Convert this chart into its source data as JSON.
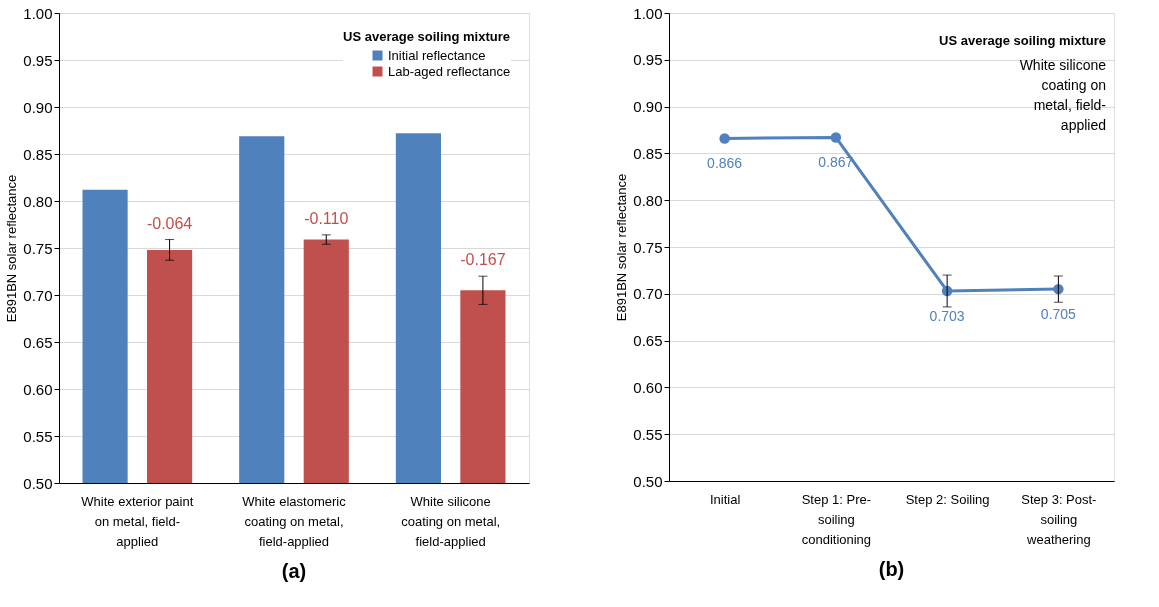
{
  "chart_data": [
    {
      "type": "bar",
      "title": "(a)",
      "ylabel": "E891BN solar reflectance",
      "legend_title": "US average soiling mixture",
      "categories": [
        "White exterior paint on metal, field-applied",
        "White elastomeric coating on metal, field-applied",
        "White silicone coating on metal, field-applied"
      ],
      "series": [
        {
          "name": "Initial reflectance",
          "color": "#4f81bd",
          "values": [
            0.812,
            0.869,
            0.872
          ]
        },
        {
          "name": "Lab-aged reflectance",
          "color": "#c0504d",
          "values": [
            0.748,
            0.759,
            0.705
          ],
          "errors": [
            0.011,
            0.005,
            0.015
          ]
        }
      ],
      "annotations": [
        "-0.064",
        "-0.110",
        "-0.167"
      ],
      "ylim": [
        0.5,
        1.0
      ],
      "yticks": [
        {
          "value": 0.5,
          "label": "0.50"
        },
        0.55,
        {
          "value": 0.6,
          "label": "0.60"
        },
        0.65,
        {
          "value": 0.7,
          "label": "0.70"
        },
        0.75,
        {
          "value": 0.8,
          "label": "0.80"
        },
        0.85,
        {
          "value": 0.9,
          "label": "0.90"
        },
        0.95,
        {
          "value": 1.0,
          "label": "1.00"
        }
      ],
      "grid": "y",
      "legend": "top right"
    },
    {
      "type": "line",
      "title": "(b)",
      "ylabel": "E891BN solar reflectance",
      "legend_title": "US average soiling mixture",
      "categories": [
        "Initial",
        "Step 1: Pre-soiling conditioning",
        "Step 2: Soiling",
        "Step 3: Post-soiling weathering"
      ],
      "series": [
        {
          "name": "White silicone coating on metal, field-applied",
          "color": "#4f81bd",
          "values": [
            0.866,
            0.867,
            0.703,
            0.705
          ],
          "errors": [
            null,
            null,
            0.017,
            0.014
          ]
        }
      ],
      "ylim": [
        0.5,
        1.0
      ],
      "yticks": [
        {
          "value": 0.5,
          "label": "0.50"
        },
        0.55,
        {
          "value": 0.6,
          "label": "0.60"
        },
        0.65,
        {
          "value": 0.7,
          "label": "0.70"
        },
        0.75,
        {
          "value": 0.8,
          "label": "0.80"
        },
        0.85,
        {
          "value": 0.9,
          "label": "0.90"
        },
        0.95,
        {
          "value": 1.0,
          "label": "1.00"
        }
      ],
      "data_labels": true,
      "marker": "circle",
      "line_style": "solid",
      "grid": "y",
      "legend": "top right"
    }
  ]
}
